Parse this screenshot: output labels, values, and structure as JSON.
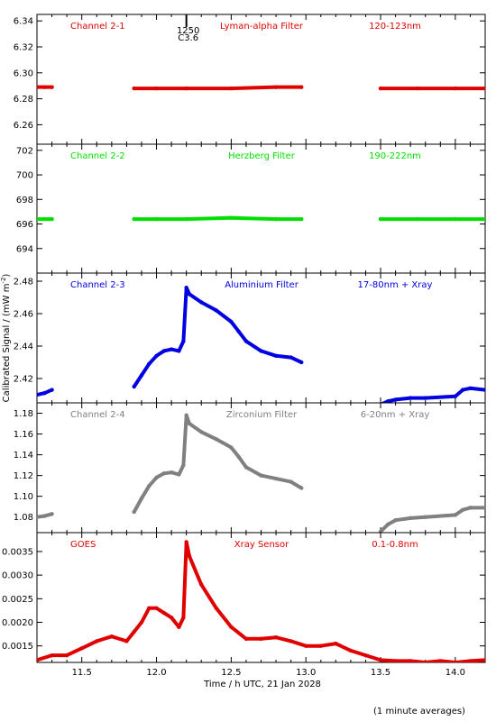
{
  "chart_data": [
    {
      "type": "scatter",
      "labels": {
        "left": "Channel 2-1",
        "center": "Lyman-alpha Filter",
        "right": "120-123nm"
      },
      "color": "#e00000",
      "ylim": [
        6.245,
        6.345
      ],
      "yticks": [
        "6.26",
        "6.28",
        "6.30",
        "6.32",
        "6.34"
      ],
      "flare_marker": {
        "x": 12.2,
        "label_top": "1250",
        "label_bottom": "C3.6"
      },
      "series": [
        {
          "x": [
            11.2,
            11.25,
            11.3
          ],
          "y": [
            6.289,
            6.289,
            6.289
          ]
        },
        {
          "x": [
            11.85,
            12.0,
            12.2,
            12.5,
            12.8,
            12.97
          ],
          "y": [
            6.288,
            6.288,
            6.288,
            6.288,
            6.289,
            6.289
          ]
        },
        {
          "x": [
            13.5,
            13.75,
            14.0,
            14.2
          ],
          "y": [
            6.288,
            6.288,
            6.288,
            6.288
          ]
        }
      ]
    },
    {
      "type": "scatter",
      "labels": {
        "left": "Channel 2-2",
        "center": "Herzberg Filter",
        "right": "190-222nm"
      },
      "color": "#00e000",
      "ylim": [
        692.0,
        702.5
      ],
      "yticks": [
        "694",
        "696",
        "698",
        "700",
        "702"
      ],
      "series": [
        {
          "x": [
            11.2,
            11.25,
            11.3
          ],
          "y": [
            696.4,
            696.4,
            696.4
          ]
        },
        {
          "x": [
            11.85,
            12.0,
            12.2,
            12.5,
            12.8,
            12.97
          ],
          "y": [
            696.4,
            696.4,
            696.4,
            696.5,
            696.4,
            696.4
          ]
        },
        {
          "x": [
            13.5,
            13.75,
            14.0,
            14.2
          ],
          "y": [
            696.4,
            696.4,
            696.4,
            696.4
          ]
        }
      ]
    },
    {
      "type": "scatter",
      "labels": {
        "left": "Channel 2-3",
        "center": "Aluminium Filter",
        "right": "17-80nm + Xray"
      },
      "color": "#0000e0",
      "ylim": [
        2.405,
        2.485
      ],
      "yticks": [
        "2.42",
        "2.44",
        "2.46",
        "2.48"
      ],
      "series": [
        {
          "x": [
            11.2,
            11.25,
            11.3
          ],
          "y": [
            2.41,
            2.411,
            2.413
          ]
        },
        {
          "x": [
            11.85,
            11.9,
            11.95,
            12.0,
            12.05,
            12.1,
            12.15,
            12.18,
            12.2,
            12.22,
            12.3,
            12.4,
            12.5,
            12.55,
            12.6,
            12.7,
            12.8,
            12.9,
            12.97
          ],
          "y": [
            2.415,
            2.422,
            2.429,
            2.434,
            2.437,
            2.438,
            2.437,
            2.443,
            2.476,
            2.472,
            2.467,
            2.462,
            2.455,
            2.449,
            2.443,
            2.437,
            2.434,
            2.433,
            2.43
          ]
        },
        {
          "x": [
            13.5,
            13.55,
            13.6,
            13.7,
            13.8,
            14.0,
            14.05,
            14.1,
            14.2
          ],
          "y": [
            2.404,
            2.406,
            2.407,
            2.408,
            2.408,
            2.409,
            2.413,
            2.414,
            2.413
          ]
        }
      ]
    },
    {
      "type": "scatter",
      "labels": {
        "left": "Channel 2-4",
        "center": "Zirconium Filter",
        "right": "6-20nm + Xray"
      },
      "color": "#808080",
      "ylim": [
        1.065,
        1.19
      ],
      "yticks": [
        "1.08",
        "1.10",
        "1.12",
        "1.14",
        "1.16",
        "1.18"
      ],
      "series": [
        {
          "x": [
            11.2,
            11.25,
            11.3
          ],
          "y": [
            1.08,
            1.081,
            1.083
          ]
        },
        {
          "x": [
            11.85,
            11.9,
            11.95,
            12.0,
            12.05,
            12.1,
            12.15,
            12.18,
            12.2,
            12.22,
            12.3,
            12.4,
            12.5,
            12.55,
            12.6,
            12.7,
            12.8,
            12.9,
            12.97
          ],
          "y": [
            1.085,
            1.098,
            1.11,
            1.118,
            1.122,
            1.123,
            1.121,
            1.13,
            1.178,
            1.17,
            1.162,
            1.155,
            1.147,
            1.138,
            1.128,
            1.12,
            1.117,
            1.114,
            1.108
          ]
        },
        {
          "x": [
            13.5,
            13.55,
            13.6,
            13.7,
            13.8,
            14.0,
            14.05,
            14.1,
            14.2
          ],
          "y": [
            1.066,
            1.073,
            1.077,
            1.079,
            1.08,
            1.082,
            1.087,
            1.089,
            1.089
          ]
        }
      ]
    },
    {
      "type": "scatter",
      "labels": {
        "left": "GOES",
        "center": "Xray Sensor",
        "right": "0.1-0.8nm"
      },
      "color": "#e00000",
      "ylim": [
        0.00115,
        0.0039
      ],
      "yticks": [
        "0.0015",
        "0.0020",
        "0.0025",
        "0.0030",
        "0.0035"
      ],
      "series": [
        {
          "x": [
            11.2,
            11.3,
            11.4,
            11.5,
            11.6,
            11.7,
            11.8,
            11.85,
            11.9,
            11.95,
            12.0,
            12.05,
            12.1,
            12.15,
            12.18,
            12.2,
            12.22,
            12.3,
            12.4,
            12.5,
            12.6,
            12.7,
            12.8,
            12.9,
            13.0,
            13.1,
            13.2,
            13.3,
            13.4,
            13.5,
            13.6,
            13.7,
            13.8,
            13.9,
            14.0,
            14.1,
            14.2
          ],
          "y": [
            0.0012,
            0.0013,
            0.0013,
            0.00145,
            0.0016,
            0.0017,
            0.0016,
            0.0018,
            0.002,
            0.0023,
            0.0023,
            0.0022,
            0.0021,
            0.0019,
            0.0021,
            0.0037,
            0.0034,
            0.0028,
            0.0023,
            0.0019,
            0.00165,
            0.00165,
            0.00168,
            0.0016,
            0.0015,
            0.0015,
            0.00155,
            0.0014,
            0.0013,
            0.0012,
            0.00118,
            0.00118,
            0.00115,
            0.00118,
            0.00115,
            0.00118,
            0.0012
          ]
        }
      ]
    }
  ],
  "x_axis": {
    "range": [
      11.2,
      14.2
    ],
    "ticks": [
      "11.5",
      "12.0",
      "12.5",
      "13.0",
      "13.5",
      "14.0"
    ],
    "title": "Time / h UTC, 21 Jan 2028"
  },
  "y_axis_title": "Calibrated Signal / (mW m",
  "y_axis_title_sup": "-2",
  "y_axis_title_end": ")",
  "footnote": "(1 minute averages)"
}
